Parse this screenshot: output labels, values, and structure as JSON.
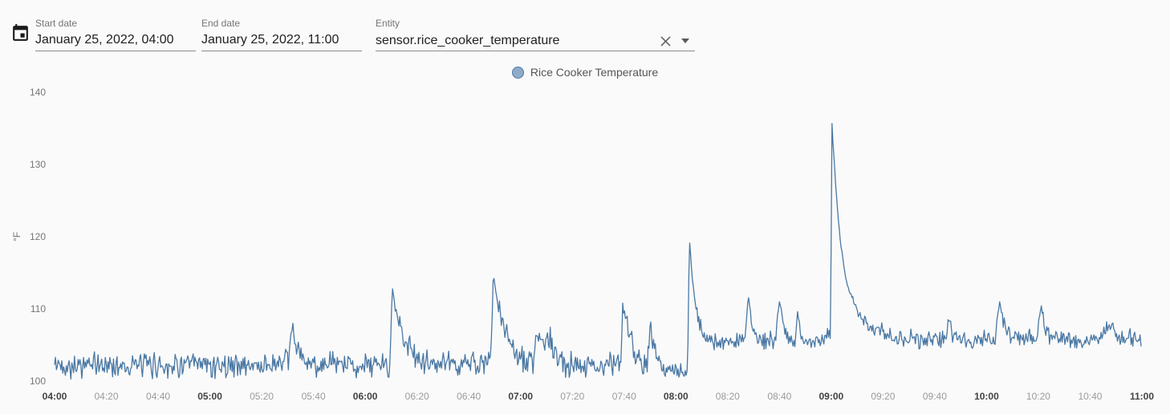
{
  "toolbar": {
    "calendar_button": "pick date range",
    "start_date": {
      "label": "Start date",
      "value": "January 25, 2022, 04:00"
    },
    "end_date": {
      "label": "End date",
      "value": "January 25, 2022, 11:00"
    },
    "entity": {
      "label": "Entity",
      "value": "sensor.rice_cooker_temperature"
    }
  },
  "legend": {
    "label": "Rice Cooker Temperature",
    "marker_fill": "#8fabc8",
    "marker_border": "#4a78a4"
  },
  "chart_data": {
    "type": "line",
    "series_name": "Rice Cooker Temperature",
    "unit": "°F",
    "line_color": "#4a78a4",
    "grid": false,
    "legend_position": "top-center",
    "ylim": [
      100,
      140
    ],
    "yticks": [
      100,
      110,
      120,
      130,
      140
    ],
    "x_start": "04:00",
    "x_end": "11:00",
    "x_total_minutes": 420,
    "xticks": [
      {
        "label": "04:00",
        "bold": true
      },
      {
        "label": "04:20",
        "bold": false
      },
      {
        "label": "04:40",
        "bold": false
      },
      {
        "label": "05:00",
        "bold": true
      },
      {
        "label": "05:20",
        "bold": false
      },
      {
        "label": "05:40",
        "bold": false
      },
      {
        "label": "06:00",
        "bold": true
      },
      {
        "label": "06:20",
        "bold": false
      },
      {
        "label": "06:40",
        "bold": false
      },
      {
        "label": "07:00",
        "bold": true
      },
      {
        "label": "07:20",
        "bold": false
      },
      {
        "label": "07:40",
        "bold": false
      },
      {
        "label": "08:00",
        "bold": true
      },
      {
        "label": "08:20",
        "bold": false
      },
      {
        "label": "08:40",
        "bold": false
      },
      {
        "label": "09:00",
        "bold": true
      },
      {
        "label": "09:20",
        "bold": false
      },
      {
        "label": "09:40",
        "bold": false
      },
      {
        "label": "10:00",
        "bold": true
      },
      {
        "label": "10:20",
        "bold": false
      },
      {
        "label": "10:40",
        "bold": false
      },
      {
        "label": "11:00",
        "bold": true
      }
    ],
    "signal_description": "High-frequency noisy temperature signal; reconstructed as envelope keypoints [minutes after 04:00, °F] plus uniform noise per segment [t_start, t_end, amplitude].",
    "envelope_keypoints": [
      [
        0,
        102.2
      ],
      [
        80,
        102.2
      ],
      [
        90,
        102.4
      ],
      [
        92,
        107.3
      ],
      [
        94,
        104.2
      ],
      [
        97,
        102.3
      ],
      [
        126,
        102.2
      ],
      [
        129.5,
        102.3
      ],
      [
        130.5,
        112.8
      ],
      [
        132,
        109.5
      ],
      [
        135,
        106.0
      ],
      [
        139,
        103.3
      ],
      [
        144,
        102.4
      ],
      [
        165,
        102.4
      ],
      [
        168.5,
        102.6
      ],
      [
        169.5,
        114.8
      ],
      [
        171,
        111.0
      ],
      [
        174,
        107.0
      ],
      [
        178,
        104.0
      ],
      [
        182,
        102.6
      ],
      [
        185,
        102.6
      ],
      [
        186.5,
        106.6
      ],
      [
        188,
        104.0
      ],
      [
        190.5,
        106.8
      ],
      [
        193,
        103.5
      ],
      [
        197,
        102.4
      ],
      [
        215,
        102.2
      ],
      [
        218.5,
        102.4
      ],
      [
        219.5,
        110.3
      ],
      [
        221,
        108.0
      ],
      [
        224,
        104.5
      ],
      [
        227,
        102.6
      ],
      [
        229,
        102.8
      ],
      [
        230,
        107.6
      ],
      [
        231.5,
        104.5
      ],
      [
        235,
        101.5
      ],
      [
        244.5,
        101.3
      ],
      [
        245.2,
        119.8
      ],
      [
        246.5,
        113.5
      ],
      [
        248,
        109.5
      ],
      [
        250,
        107.0
      ],
      [
        253,
        105.7
      ],
      [
        257,
        105.4
      ],
      [
        266.5,
        105.4
      ],
      [
        268,
        111.7
      ],
      [
        269.5,
        108.0
      ],
      [
        272,
        105.6
      ],
      [
        278.5,
        105.5
      ],
      [
        280,
        111.2
      ],
      [
        281.5,
        108.3
      ],
      [
        284,
        105.6
      ],
      [
        286,
        105.7
      ],
      [
        287,
        108.9
      ],
      [
        288.5,
        105.7
      ],
      [
        293,
        105.2
      ],
      [
        298,
        106.0
      ],
      [
        299.8,
        107.2
      ],
      [
        300.2,
        136.3
      ],
      [
        301,
        131.0
      ],
      [
        302,
        125.5
      ],
      [
        303.5,
        119.5
      ],
      [
        305,
        115.5
      ],
      [
        307,
        112.3
      ],
      [
        310,
        110.0
      ],
      [
        313,
        108.4
      ],
      [
        317,
        107.2
      ],
      [
        322,
        106.3
      ],
      [
        330,
        105.8
      ],
      [
        344,
        105.8
      ],
      [
        345.5,
        108.6
      ],
      [
        347,
        105.9
      ],
      [
        352,
        105.8
      ],
      [
        363.5,
        105.9
      ],
      [
        365,
        111.2
      ],
      [
        366.5,
        107.8
      ],
      [
        369,
        105.9
      ],
      [
        379.5,
        105.9
      ],
      [
        381,
        110.7
      ],
      [
        382.5,
        107.8
      ],
      [
        385,
        105.9
      ],
      [
        395,
        105.7
      ],
      [
        404,
        105.8
      ],
      [
        408.5,
        108.3
      ],
      [
        410.5,
        106.0
      ],
      [
        420,
        105.9
      ]
    ],
    "noise_segments": [
      [
        0,
        235,
        2.1
      ],
      [
        235,
        244.5,
        1.1
      ],
      [
        244.5,
        253,
        1.3
      ],
      [
        253,
        299.8,
        1.5
      ],
      [
        299.8,
        313,
        1.6
      ],
      [
        313,
        420,
        1.5
      ]
    ]
  }
}
